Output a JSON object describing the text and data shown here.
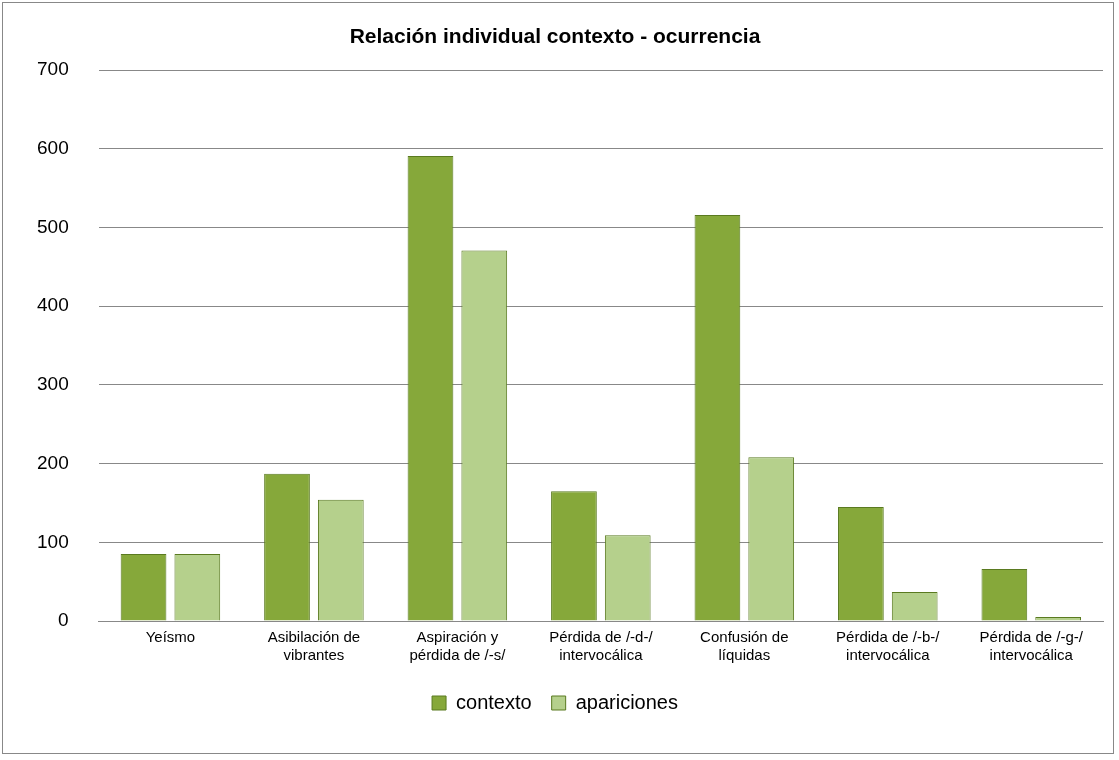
{
  "chart_data": {
    "type": "bar",
    "title": "Relación individual contexto - ocurrencia",
    "categories": [
      "Yeísmo",
      "Asibilación de vibrantes",
      "Aspiración y pérdida de /-s/",
      "Pérdida de /-d-/ intervocálica",
      "Confusión de líquidas",
      "Pérdida de /-b-/ intervocálica",
      "Pérdida de /-g-/ intervocálica"
    ],
    "series": [
      {
        "name": "contexto",
        "color": "#86a83a",
        "values": [
          85,
          187,
          591,
          165,
          516,
          145,
          66
        ]
      },
      {
        "name": "apariciones",
        "color": "#b5d08c",
        "values": [
          85,
          154,
          471,
          109,
          208,
          37,
          5
        ]
      }
    ],
    "ylim": [
      0,
      700
    ],
    "yticks": [
      0,
      100,
      200,
      300,
      400,
      500,
      600,
      700
    ],
    "grid": "y",
    "legend": "bottom"
  }
}
